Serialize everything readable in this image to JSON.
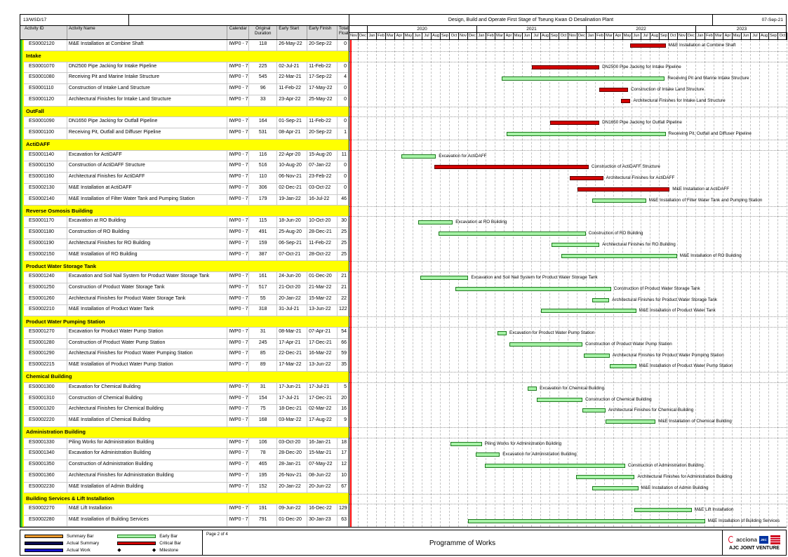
{
  "page_header": {
    "contract_ref": "13/WSD/17",
    "project_title": "Design, Build and Operate First Stage of Tseung Kwan O Desalination Plant",
    "report_date": "07-Sep-21"
  },
  "table": {
    "columns": [
      "Activity ID",
      "Activity Name",
      "Calendar",
      "Original Duration",
      "Early Start",
      "Early Finish",
      "Total Float"
    ]
  },
  "chart_data": {
    "type": "gantt",
    "title": "Programme of Works",
    "timeline": {
      "start_month": "Nov-2019",
      "end_month": "Oct-2023",
      "year_labels": [
        "2020",
        "2021",
        "2022",
        "2023"
      ],
      "month_abbrevs": [
        "Jan",
        "Feb",
        "Mar",
        "Apr",
        "May",
        "Jun",
        "Jul",
        "Aug",
        "Sep",
        "Oct",
        "Nov",
        "Dec"
      ]
    },
    "bar_colors": {
      "critical_fill": "#d20000",
      "critical_border": "#5a0000",
      "early_fill": "#a6f2a6",
      "early_border": "#1e7a1e",
      "data_date_line": "#ff0000"
    },
    "sections": [
      {
        "title": null,
        "activities": [
          {
            "id": "ES0002120",
            "name": "M&E Installation at Combine Shaft",
            "calendar": "IWP0 - 7",
            "duration": 118,
            "start": "26-May-22",
            "finish": "20-Sep-22",
            "float": 0
          }
        ]
      },
      {
        "title": "Intake",
        "activities": [
          {
            "id": "ES0001070",
            "name": "DN2500 Pipe Jacking for Intake Pipeline",
            "calendar": "IWP0 - 7",
            "duration": 225,
            "start": "02-Jul-21",
            "finish": "11-Feb-22",
            "float": 0
          },
          {
            "id": "ES0001080",
            "name": "Receiving Pit and Marine Intake Structure",
            "calendar": "IWP0 - 7",
            "duration": 545,
            "start": "22-Mar-21",
            "finish": "17-Sep-22",
            "float": 4
          },
          {
            "id": "ES0001110",
            "name": "Construction of Intake Land Structure",
            "calendar": "IWP0 - 7",
            "duration": 96,
            "start": "11-Feb-22",
            "finish": "17-May-22",
            "float": 0
          },
          {
            "id": "ES0001120",
            "name": "Architectural Finishes for Intake Land Structure",
            "calendar": "IWP0 - 7",
            "duration": 33,
            "start": "23-Apr-22",
            "finish": "25-May-22",
            "float": 0
          }
        ]
      },
      {
        "title": "OutFall",
        "activities": [
          {
            "id": "ES0001090",
            "name": "DN1650 Pipe Jacking for Outfall Pipeline",
            "calendar": "IWP0 - 7",
            "duration": 164,
            "start": "01-Sep-21",
            "finish": "11-Feb-22",
            "float": 0
          },
          {
            "id": "ES0001100",
            "name": "Receiving Pit, Outfall and Diffuser Pipeline",
            "calendar": "IWP0 - 7",
            "duration": 531,
            "start": "08-Apr-21",
            "finish": "20-Sep-22",
            "float": 1
          }
        ]
      },
      {
        "title": "ActiDAFF",
        "activities": [
          {
            "id": "ES0001140",
            "name": "Excavation for ActiDAFF",
            "calendar": "IWP0 - 7",
            "duration": 116,
            "start": "22-Apr-20",
            "finish": "15-Aug-20",
            "float": 11
          },
          {
            "id": "ES0001150",
            "name": "Construction of ActiDAFF Structure",
            "calendar": "IWP0 - 7",
            "duration": 516,
            "start": "10-Aug-20",
            "finish": "07-Jan-22",
            "float": 0
          },
          {
            "id": "ES0001160",
            "name": "Architectural Finishes for ActiDAFF",
            "calendar": "IWP0 - 7",
            "duration": 110,
            "start": "06-Nov-21",
            "finish": "23-Feb-22",
            "float": 0
          },
          {
            "id": "ES0002130",
            "name": "M&E Installation at ActiDAFF",
            "calendar": "IWP0 - 7",
            "duration": 306,
            "start": "02-Dec-21",
            "finish": "03-Oct-22",
            "float": 0
          },
          {
            "id": "ES0002140",
            "name": "M&E Installation of Filter Water Tank and Pumping Station",
            "calendar": "IWP0 - 7",
            "duration": 179,
            "start": "19-Jan-22",
            "finish": "16-Jul-22",
            "float": 46
          }
        ]
      },
      {
        "title": "Reverse Osmosis Building",
        "activities": [
          {
            "id": "ES0001170",
            "name": "Excavation at RO Building",
            "calendar": "IWP0 - 7",
            "duration": 115,
            "start": "18-Jun-20",
            "finish": "10-Oct-20",
            "float": 30
          },
          {
            "id": "ES0001180",
            "name": "Construction of RO Building",
            "calendar": "IWP0 - 7",
            "duration": 491,
            "start": "25-Aug-20",
            "finish": "28-Dec-21",
            "float": 25
          },
          {
            "id": "ES0001190",
            "name": "Architectural Finishes for RO Building",
            "calendar": "IWP0 - 7",
            "duration": 159,
            "start": "06-Sep-21",
            "finish": "11-Feb-22",
            "float": 25
          },
          {
            "id": "ES0002150",
            "name": "M&E Installation of RO Building",
            "calendar": "IWP0 - 7",
            "duration": 387,
            "start": "07-Oct-21",
            "finish": "28-Oct-22",
            "float": 25
          }
        ]
      },
      {
        "title": "Product Water Storage Tank",
        "activities": [
          {
            "id": "ES0001240",
            "name": "Excavation and Soil Nail System for Product Water Storage Tank",
            "calendar": "IWP0 - 7",
            "duration": 161,
            "start": "24-Jun-20",
            "finish": "01-Dec-20",
            "float": 21
          },
          {
            "id": "ES0001250",
            "name": "Construction of Product Water Storage Tank",
            "calendar": "IWP0 - 7",
            "duration": 517,
            "start": "21-Oct-20",
            "finish": "21-Mar-22",
            "float": 21
          },
          {
            "id": "ES0001260",
            "name": "Architectural Finishes for Product Water Storage Tank",
            "calendar": "IWP0 - 7",
            "duration": 55,
            "start": "20-Jan-22",
            "finish": "15-Mar-22",
            "float": 22
          },
          {
            "id": "ES0002210",
            "name": "M&E Installation of Product Water Tank",
            "calendar": "IWP0 - 7",
            "duration": 318,
            "start": "31-Jul-21",
            "finish": "13-Jun-22",
            "float": 122
          }
        ]
      },
      {
        "title": "Product Water Pumping Station",
        "activities": [
          {
            "id": "ES0001270",
            "name": "Excavation for Product Water Pump Station",
            "calendar": "IWP0 - 7",
            "duration": 31,
            "start": "08-Mar-21",
            "finish": "07-Apr-21",
            "float": 54
          },
          {
            "id": "ES0001280",
            "name": "Construction of Product Water Pump Station",
            "calendar": "IWP0 - 7",
            "duration": 245,
            "start": "17-Apr-21",
            "finish": "17-Dec-21",
            "float": 66
          },
          {
            "id": "ES0001290",
            "name": "Architectural Finishes for Product Water Pumping Station",
            "calendar": "IWP0 - 7",
            "duration": 85,
            "start": "22-Dec-21",
            "finish": "16-Mar-22",
            "float": 59
          },
          {
            "id": "ES0002215",
            "name": "M&E Installation of Product Water Pump Station",
            "calendar": "IWP0 - 7",
            "duration": 89,
            "start": "17-Mar-22",
            "finish": "13-Jun-22",
            "float": 35
          }
        ]
      },
      {
        "title": "Chemical Building",
        "activities": [
          {
            "id": "ES0001300",
            "name": "Excavation for Chemical Building",
            "calendar": "IWP0 - 7",
            "duration": 31,
            "start": "17-Jun-21",
            "finish": "17-Jul-21",
            "float": 5
          },
          {
            "id": "ES0001310",
            "name": "Construction of Chemical Building",
            "calendar": "IWP0 - 7",
            "duration": 154,
            "start": "17-Jul-21",
            "finish": "17-Dec-21",
            "float": 20
          },
          {
            "id": "ES0001320",
            "name": "Architectural Finishes for Chemical Building",
            "calendar": "IWP0 - 7",
            "duration": 75,
            "start": "18-Dec-21",
            "finish": "02-Mar-22",
            "float": 16
          },
          {
            "id": "ES0002220",
            "name": "M&E Installation of Chemical Building",
            "calendar": "IWP0 - 7",
            "duration": 168,
            "start": "03-Mar-22",
            "finish": "17-Aug-22",
            "float": 9
          }
        ]
      },
      {
        "title": "Administration Building",
        "activities": [
          {
            "id": "ES0001330",
            "name": "Piling Works for Administration Building",
            "calendar": "IWP0 - 7",
            "duration": 106,
            "start": "03-Oct-20",
            "finish": "16-Jan-21",
            "float": 18
          },
          {
            "id": "ES0001340",
            "name": "Excavation for Administration Building",
            "calendar": "IWP0 - 7",
            "duration": 78,
            "start": "28-Dec-20",
            "finish": "15-Mar-21",
            "float": 17
          },
          {
            "id": "ES0001350",
            "name": "Construction of Administration Building",
            "calendar": "IWP0 - 7",
            "duration": 465,
            "start": "28-Jan-21",
            "finish": "07-May-22",
            "float": 12
          },
          {
            "id": "ES0001360",
            "name": "Architectural Finishes for Administration Building",
            "calendar": "IWP0 - 7",
            "duration": 195,
            "start": "26-Nov-21",
            "finish": "08-Jun-22",
            "float": 10
          },
          {
            "id": "ES0002230",
            "name": "M&E Installation of Admin Building",
            "calendar": "IWP0 - 7",
            "duration": 152,
            "start": "20-Jan-22",
            "finish": "20-Jun-22",
            "float": 67
          }
        ]
      },
      {
        "title": "Building Services & Lift Installation",
        "activities": [
          {
            "id": "ES0002270",
            "name": "M&E Lift Installation",
            "calendar": "IWP0 - 7",
            "duration": 191,
            "start": "09-Jun-22",
            "finish": "16-Dec-22",
            "float": 129
          },
          {
            "id": "ES0002280",
            "name": "M&E Installation of Building Services",
            "calendar": "IWP0 - 7",
            "duration": 791,
            "start": "01-Dec-20",
            "finish": "30-Jan-23",
            "float": 63
          }
        ]
      }
    ]
  },
  "legend": [
    {
      "label": "Summary Bar",
      "fill": "#ee9a2d",
      "border": "#000000"
    },
    {
      "label": "Actual Summary",
      "fill": "#0a0a50",
      "border": "#000000"
    },
    {
      "label": "Actual Work",
      "fill": "#1414cc",
      "border": "#000000"
    },
    {
      "label": "Early Bar",
      "fill": "#a6f2a6",
      "border": "#1e7a1e"
    },
    {
      "label": "Critical Bar",
      "fill": "#d20000",
      "border": "#000000"
    },
    {
      "label": "Milestone",
      "symbol": "◆"
    }
  ],
  "footer": {
    "page_label": "Page 2 of 4",
    "center_title": "Programme of Works",
    "logo_acciona": "acciona",
    "logo_jec": "JEC",
    "logo_venture": "AJC JOINT VENTURE"
  }
}
